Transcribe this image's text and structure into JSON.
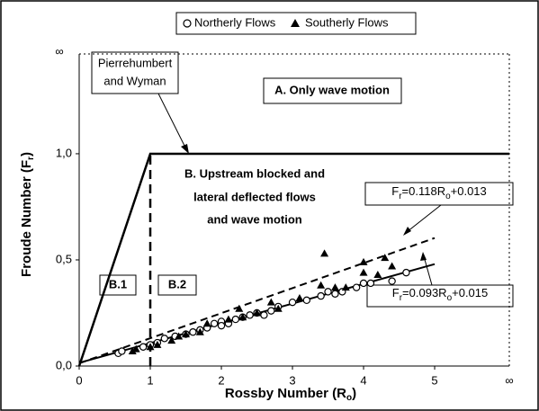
{
  "chart_data": {
    "type": "scatter",
    "xlabel_parts": [
      "Rossby Number (R",
      "o",
      ")"
    ],
    "ylabel_parts": [
      "Froude Number (F",
      "r",
      ")"
    ],
    "xlim": [
      0,
      6.05
    ],
    "ylim": [
      0,
      1.47
    ],
    "xticks": [
      0,
      1,
      2,
      3,
      4,
      5
    ],
    "yticks": [
      {
        "value": 0,
        "label": "0,0"
      },
      {
        "value": 0.5,
        "label": "0,5"
      },
      {
        "value": 1,
        "label": "1,0"
      }
    ],
    "infinity_label": "∞",
    "series": [
      {
        "name": "Northerly Flows",
        "marker": "circle",
        "color": "#000000",
        "x": [
          0.55,
          0.6,
          0.9,
          1.0,
          1.1,
          1.2,
          1.35,
          1.5,
          1.6,
          1.7,
          1.8,
          1.9,
          2.0,
          2.0,
          2.1,
          2.2,
          2.3,
          2.4,
          2.5,
          2.6,
          2.7,
          2.8,
          3.0,
          3.2,
          3.4,
          3.5,
          3.6,
          3.7,
          3.9,
          4.0,
          4.1,
          4.4,
          4.6
        ],
        "values": [
          0.06,
          0.07,
          0.09,
          0.1,
          0.11,
          0.13,
          0.14,
          0.15,
          0.16,
          0.17,
          0.18,
          0.2,
          0.21,
          0.19,
          0.2,
          0.22,
          0.23,
          0.24,
          0.25,
          0.24,
          0.26,
          0.28,
          0.3,
          0.31,
          0.33,
          0.35,
          0.34,
          0.35,
          0.37,
          0.39,
          0.39,
          0.4,
          0.44
        ]
      },
      {
        "name": "Southerly Flows",
        "marker": "triangle",
        "color": "#000000",
        "x": [
          0.75,
          0.8,
          1.0,
          1.1,
          1.3,
          1.4,
          1.5,
          1.7,
          1.8,
          2.1,
          2.25,
          2.3,
          2.5,
          2.7,
          2.8,
          3.1,
          3.4,
          3.45,
          3.6,
          3.75,
          4.0,
          4.0,
          4.2,
          4.3,
          4.4
        ],
        "values": [
          0.07,
          0.08,
          0.09,
          0.1,
          0.12,
          0.14,
          0.15,
          0.16,
          0.2,
          0.22,
          0.27,
          0.23,
          0.25,
          0.3,
          0.27,
          0.32,
          0.38,
          0.53,
          0.37,
          0.37,
          0.49,
          0.44,
          0.43,
          0.51,
          0.47
        ]
      }
    ],
    "fits": [
      {
        "slope": 0.118,
        "intercept": 0.013,
        "x": [
          0,
          5
        ],
        "dashed": true,
        "label_parts": [
          "F",
          "r",
          "=0.118R",
          "o",
          "+0.013"
        ]
      },
      {
        "slope": 0.093,
        "intercept": 0.015,
        "x": [
          0,
          5
        ],
        "dashed": false,
        "label_parts": [
          "F",
          "r",
          "=0.093R",
          "o",
          "+0.015"
        ]
      }
    ],
    "boundary": {
      "x": [
        0,
        1,
        6.05
      ],
      "values": [
        0,
        1,
        1
      ]
    },
    "divider": {
      "x": [
        1,
        1
      ],
      "values": [
        0,
        1
      ]
    },
    "annotations": {
      "pierrehumbert": [
        "Pierrehumbert",
        "and Wyman"
      ],
      "region_a": "A. Only wave motion",
      "region_b": [
        "B. Upstream blocked and",
        "lateral deflected flows",
        "and  wave motion"
      ],
      "b1": "B.1",
      "b2": "B.2"
    }
  }
}
